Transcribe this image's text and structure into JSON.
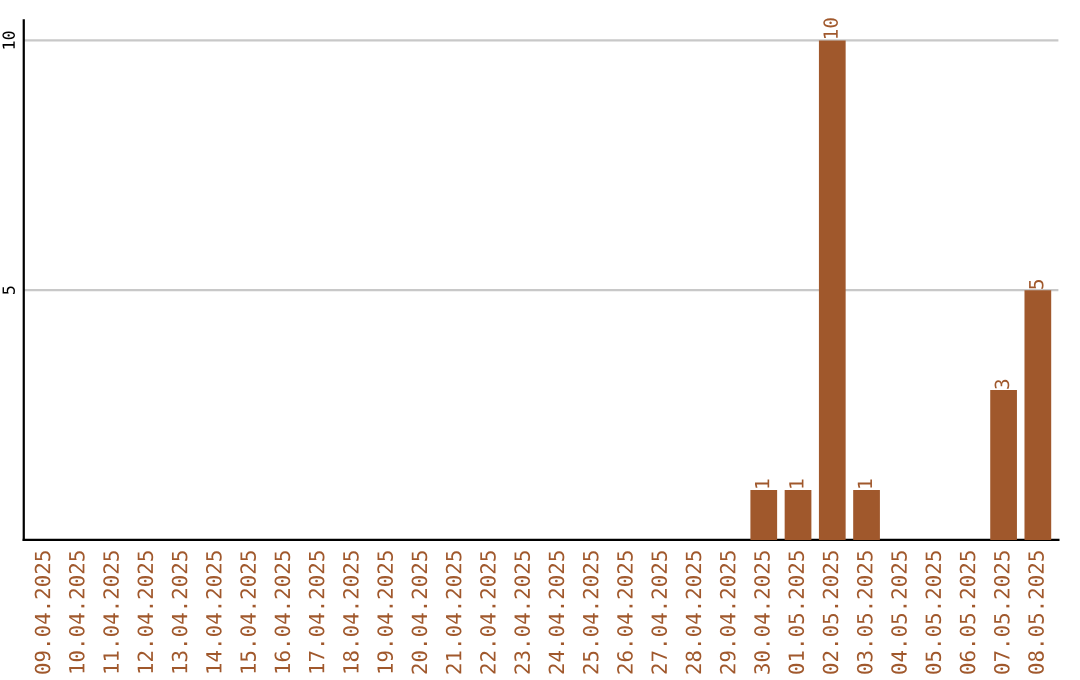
{
  "chart_data": {
    "type": "bar",
    "categories": [
      "09.04.2025",
      "10.04.2025",
      "11.04.2025",
      "12.04.2025",
      "13.04.2025",
      "14.04.2025",
      "15.04.2025",
      "16.04.2025",
      "17.04.2025",
      "18.04.2025",
      "19.04.2025",
      "20.04.2025",
      "21.04.2025",
      "22.04.2025",
      "23.04.2025",
      "24.04.2025",
      "25.04.2025",
      "26.04.2025",
      "27.04.2025",
      "28.04.2025",
      "29.04.2025",
      "30.04.2025",
      "01.05.2025",
      "02.05.2025",
      "03.05.2025",
      "04.05.2025",
      "05.05.2025",
      "06.05.2025",
      "07.05.2025",
      "08.05.2025"
    ],
    "values": [
      0,
      0,
      0,
      0,
      0,
      0,
      0,
      0,
      0,
      0,
      0,
      0,
      0,
      0,
      0,
      0,
      0,
      0,
      0,
      0,
      0,
      1,
      1,
      10,
      1,
      0,
      0,
      0,
      3,
      5
    ],
    "value_labels": [
      null,
      null,
      null,
      null,
      null,
      null,
      null,
      null,
      null,
      null,
      null,
      null,
      null,
      null,
      null,
      null,
      null,
      null,
      null,
      null,
      null,
      "1",
      "1",
      "10",
      "1",
      null,
      null,
      null,
      "3",
      "5"
    ],
    "color": "#a0582c",
    "ylim": [
      0,
      10.4
    ],
    "yticks": [
      5,
      10
    ],
    "grid": "y",
    "legend": false
  }
}
